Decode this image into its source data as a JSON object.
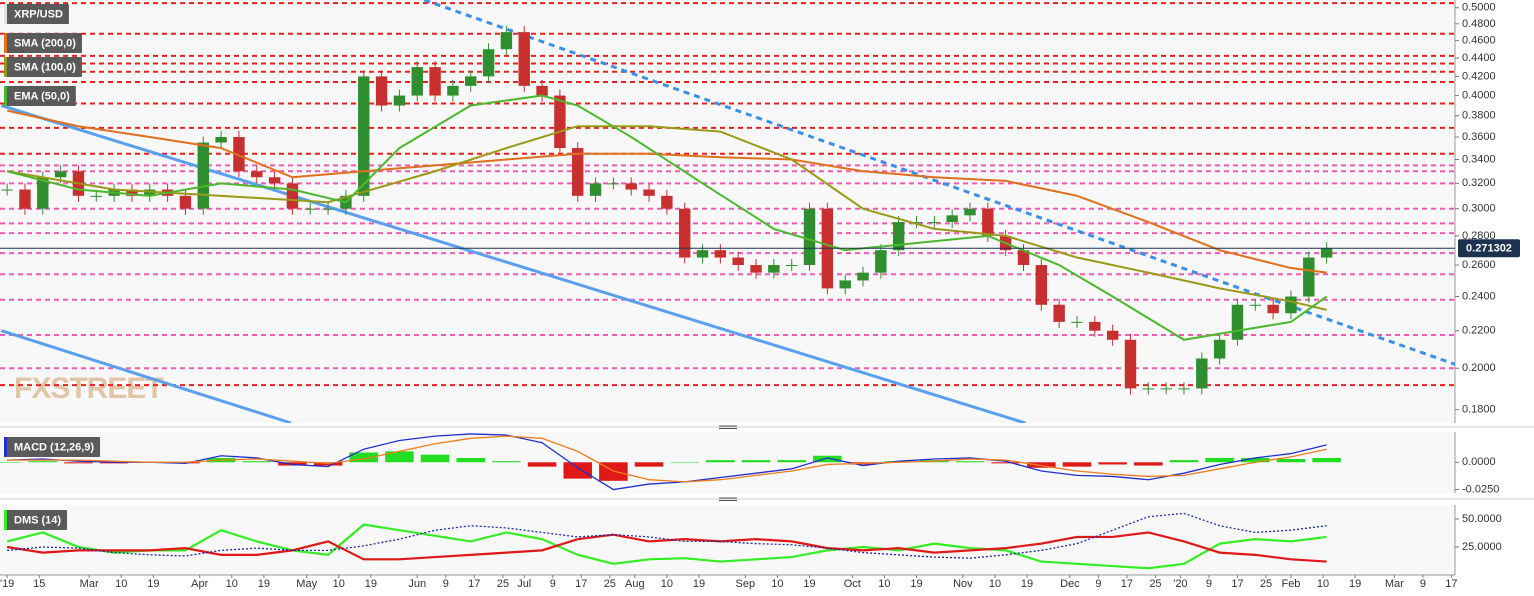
{
  "chart_data": [
    {
      "type": "candlestick",
      "title": "XRP/USD",
      "log": true,
      "ylim": [
        0.174,
        0.51
      ],
      "xlim": [
        34,
        442
      ],
      "yticks": [
        {
          "value": 0.18,
          "label": "0.1800"
        },
        {
          "value": 0.2,
          "label": "0.2000"
        },
        {
          "value": 0.22,
          "label": "0.2200"
        },
        {
          "value": 0.24,
          "label": "0.2400"
        },
        {
          "value": 0.26,
          "label": "0.2600"
        },
        {
          "value": 0.28,
          "label": "0.2800"
        },
        {
          "value": 0.3,
          "label": "0.3000"
        },
        {
          "value": 0.32,
          "label": "0.3200"
        },
        {
          "value": 0.34,
          "label": "0.3400"
        },
        {
          "value": 0.36,
          "label": "0.3600"
        },
        {
          "value": 0.38,
          "label": "0.3800"
        },
        {
          "value": 0.4,
          "label": "0.4000"
        },
        {
          "value": 0.42,
          "label": "0.4200"
        },
        {
          "value": 0.44,
          "label": "0.4400"
        },
        {
          "value": 0.46,
          "label": "0.4600"
        },
        {
          "value": 0.48,
          "label": "0.4800"
        },
        {
          "value": 0.5,
          "label": "0.5000"
        }
      ],
      "up_color": "#2f8f2f",
      "down_color": "#c83030",
      "x": [
        36,
        41,
        46,
        51,
        56,
        61,
        66,
        71,
        76,
        81,
        86,
        91,
        96,
        101,
        106,
        111,
        116,
        121,
        126,
        131,
        136,
        141,
        146,
        151,
        156,
        161,
        166,
        171,
        176,
        181,
        186,
        191,
        196,
        201,
        206,
        211,
        216,
        221,
        226,
        231,
        236,
        241,
        246,
        251,
        256,
        261,
        266,
        271,
        276,
        281,
        286,
        291,
        296,
        301,
        306,
        311,
        316,
        321,
        326,
        331,
        336,
        341,
        346,
        351,
        356,
        361,
        366,
        371,
        376,
        381,
        386,
        391,
        396,
        401,
        406
      ],
      "values": [
        0.315,
        0.3,
        0.325,
        0.33,
        0.31,
        0.31,
        0.315,
        0.31,
        0.315,
        0.31,
        0.3,
        0.355,
        0.36,
        0.33,
        0.325,
        0.32,
        0.3,
        0.3,
        0.3,
        0.31,
        0.42,
        0.39,
        0.4,
        0.43,
        0.4,
        0.41,
        0.42,
        0.45,
        0.47,
        0.41,
        0.4,
        0.35,
        0.31,
        0.32,
        0.32,
        0.315,
        0.31,
        0.3,
        0.265,
        0.27,
        0.265,
        0.26,
        0.255,
        0.26,
        0.26,
        0.3,
        0.245,
        0.25,
        0.255,
        0.27,
        0.29,
        0.29,
        0.29,
        0.295,
        0.3,
        0.28,
        0.27,
        0.26,
        0.235,
        0.225,
        0.225,
        0.22,
        0.215,
        0.19,
        0.19,
        0.19,
        0.19,
        0.205,
        0.215,
        0.235,
        0.235,
        0.23,
        0.24,
        0.265,
        0.2713
      ],
      "series": [
        {
          "name": "SMA (200,0)",
          "color": "#e0701c",
          "x": [
            36,
            56,
            76,
            96,
            116,
            136,
            156,
            176,
            196,
            216,
            236,
            256,
            276,
            296,
            316,
            336,
            356,
            376,
            396,
            406
          ],
          "values": [
            0.385,
            0.37,
            0.36,
            0.35,
            0.325,
            0.33,
            0.335,
            0.34,
            0.345,
            0.345,
            0.342,
            0.34,
            0.33,
            0.325,
            0.322,
            0.31,
            0.29,
            0.27,
            0.258,
            0.255
          ]
        },
        {
          "name": "SMA (100,0)",
          "color": "#9a9a18",
          "x": [
            36,
            66,
            96,
            126,
            156,
            176,
            196,
            216,
            236,
            256,
            276,
            296,
            316,
            336,
            356,
            376,
            396,
            406
          ],
          "values": [
            0.33,
            0.315,
            0.31,
            0.305,
            0.33,
            0.35,
            0.37,
            0.37,
            0.365,
            0.34,
            0.3,
            0.285,
            0.28,
            0.265,
            0.255,
            0.245,
            0.237,
            0.232
          ]
        },
        {
          "name": "EMA (50,0)",
          "color": "#4cb82c",
          "x": [
            36,
            56,
            76,
            96,
            116,
            131,
            146,
            166,
            186,
            196,
            211,
            231,
            251,
            271,
            291,
            311,
            331,
            346,
            366,
            381,
            396,
            406
          ],
          "values": [
            0.33,
            0.315,
            0.31,
            0.32,
            0.315,
            0.305,
            0.35,
            0.39,
            0.4,
            0.39,
            0.36,
            0.32,
            0.285,
            0.27,
            0.275,
            0.28,
            0.26,
            0.24,
            0.215,
            0.22,
            0.225,
            0.24
          ]
        }
      ],
      "levels": [
        {
          "color": "#e8201c",
          "values": [
            0.506,
            0.468,
            0.4425,
            0.434,
            0.425,
            0.414,
            0.392,
            0.3685,
            0.345,
            0.1916
          ]
        },
        {
          "color": "#f05ab4",
          "values": [
            0.335,
            0.33,
            0.32,
            0.3,
            0.289,
            0.282,
            0.268,
            0.254,
            0.238,
            0.2176,
            0.2
          ]
        }
      ],
      "trendlines": [
        {
          "color": "#3a8fe8",
          "dashed": true,
          "x": [
            153,
            442
          ],
          "values": [
            0.51,
            0.202
          ]
        },
        {
          "color": "#5aa0f0",
          "dashed": false,
          "x": [
            34.4,
            321.5
          ],
          "values": [
            0.39,
            0.174
          ]
        },
        {
          "color": "#5aa0f0",
          "dashed": false,
          "x": [
            34.4,
            115.6
          ],
          "values": [
            0.22,
            0.174
          ]
        }
      ],
      "last_price": 0.271302,
      "last_color": "#1c3350",
      "watermark": "FXSTREET"
    },
    {
      "type": "macd",
      "title": "MACD (12,26,9)",
      "xlim": [
        34,
        442
      ],
      "ylim": [
        -0.0282,
        0.0278
      ],
      "yticks": [
        {
          "value": 0,
          "label": "0.0000"
        },
        {
          "value": -0.025,
          "label": "-0.0250"
        }
      ],
      "x": [
        36,
        46,
        56,
        66,
        76,
        86,
        96,
        106,
        116,
        126,
        136,
        146,
        156,
        166,
        176,
        186,
        196,
        206,
        216,
        226,
        236,
        246,
        256,
        266,
        276,
        286,
        296,
        306,
        316,
        326,
        336,
        346,
        356,
        366,
        376,
        386,
        396,
        406
      ],
      "series": [
        {
          "color": "#2030d0",
          "values": [
            0.002,
            0.003,
            0.001,
            0,
            0,
            -0.001,
            0.006,
            0.004,
            -0.002,
            -0.004,
            0.012,
            0.02,
            0.024,
            0.026,
            0.025,
            0.018,
            -0.005,
            -0.025,
            -0.02,
            -0.018,
            -0.014,
            -0.01,
            -0.006,
            0.004,
            -0.003,
            0.001,
            0.003,
            0.004,
            0.001,
            -0.008,
            -0.012,
            -0.013,
            -0.016,
            -0.01,
            -0.002,
            0.004,
            0.008,
            0.016
          ]
        },
        {
          "color": "#f07c1c",
          "values": [
            0.002,
            0.002,
            0.002,
            0.001,
            0,
            0,
            0.002,
            0.003,
            0.001,
            -0.001,
            0.003,
            0.01,
            0.017,
            0.022,
            0.024,
            0.022,
            0.01,
            -0.008,
            -0.016,
            -0.018,
            -0.016,
            -0.012,
            -0.008,
            -0.002,
            -0.001,
            0,
            0.001,
            0.003,
            0.002,
            -0.003,
            -0.008,
            -0.011,
            -0.013,
            -0.012,
            -0.006,
            0,
            0.005,
            0.012
          ]
        }
      ],
      "histogram": {
        "up_color": "#22dd22",
        "down_color": "#e01818",
        "values": [
          0,
          0.001,
          -0.001,
          -0.001,
          0,
          -0.001,
          0.004,
          0.001,
          -0.003,
          -0.003,
          0.009,
          0.01,
          0.007,
          0.004,
          0.001,
          -0.004,
          -0.015,
          -0.017,
          -0.004,
          0,
          0.002,
          0.002,
          0.002,
          0.006,
          -0.002,
          0.001,
          0.002,
          0.001,
          -0.001,
          -0.005,
          -0.004,
          -0.002,
          -0.003,
          0.002,
          0.004,
          0.004,
          0.003,
          0.004
        ]
      }
    },
    {
      "type": "dms",
      "title": "DMS (14)",
      "xlim": [
        34,
        442
      ],
      "ylim": [
        0,
        62.5
      ],
      "yticks": [
        {
          "value": 50,
          "label": "50.0000"
        },
        {
          "value": 25,
          "label": "25.0000"
        }
      ],
      "x": [
        36,
        46,
        56,
        66,
        76,
        86,
        96,
        106,
        116,
        126,
        136,
        146,
        156,
        166,
        176,
        186,
        196,
        206,
        216,
        226,
        236,
        246,
        256,
        266,
        276,
        286,
        296,
        306,
        316,
        326,
        336,
        346,
        356,
        366,
        376,
        386,
        396,
        406
      ],
      "series": [
        {
          "color": "#33ee22",
          "values": [
            30,
            38,
            25,
            20,
            22,
            22,
            40,
            30,
            22,
            18,
            45,
            40,
            35,
            30,
            38,
            32,
            18,
            10,
            14,
            15,
            12,
            14,
            16,
            22,
            25,
            22,
            28,
            24,
            22,
            12,
            10,
            8,
            6,
            10,
            28,
            32,
            30,
            34
          ]
        },
        {
          "color": "#e01818",
          "values": [
            25,
            20,
            22,
            22,
            22,
            24,
            18,
            18,
            22,
            30,
            14,
            14,
            16,
            18,
            20,
            22,
            32,
            36,
            30,
            32,
            30,
            32,
            30,
            24,
            22,
            24,
            20,
            22,
            24,
            28,
            34,
            34,
            38,
            30,
            20,
            18,
            14,
            12
          ]
        },
        {
          "color": "#1a2aa8",
          "dotted": true,
          "values": [
            22,
            25,
            24,
            20,
            18,
            17,
            22,
            24,
            22,
            22,
            26,
            32,
            40,
            44,
            42,
            38,
            34,
            36,
            34,
            30,
            30,
            28,
            27,
            24,
            20,
            18,
            16,
            15,
            18,
            22,
            28,
            40,
            52,
            55,
            44,
            38,
            40,
            44
          ]
        }
      ],
      "xticks": [
        {
          "value": 36,
          "label": "'19"
        },
        {
          "value": 45,
          "label": "15"
        },
        {
          "value": 59,
          "label": "Mar"
        },
        {
          "value": 68,
          "label": "10"
        },
        {
          "value": 77,
          "label": "19"
        },
        {
          "value": 90,
          "label": "Apr"
        },
        {
          "value": 99,
          "label": "10"
        },
        {
          "value": 108,
          "label": "19"
        },
        {
          "value": 120,
          "label": "May"
        },
        {
          "value": 129,
          "label": "10"
        },
        {
          "value": 138,
          "label": "19"
        },
        {
          "value": 151,
          "label": "Jun"
        },
        {
          "value": 159,
          "label": "9"
        },
        {
          "value": 167,
          "label": "17"
        },
        {
          "value": 175,
          "label": "25"
        },
        {
          "value": 181,
          "label": "Jul"
        },
        {
          "value": 189,
          "label": "9"
        },
        {
          "value": 197,
          "label": "17"
        },
        {
          "value": 205,
          "label": "25"
        },
        {
          "value": 212,
          "label": "Aug"
        },
        {
          "value": 221,
          "label": "10"
        },
        {
          "value": 230,
          "label": "19"
        },
        {
          "value": 243,
          "label": "Sep"
        },
        {
          "value": 252,
          "label": "10"
        },
        {
          "value": 261,
          "label": "19"
        },
        {
          "value": 273,
          "label": "Oct"
        },
        {
          "value": 282,
          "label": "10"
        },
        {
          "value": 291,
          "label": "19"
        },
        {
          "value": 304,
          "label": "Nov"
        },
        {
          "value": 313,
          "label": "10"
        },
        {
          "value": 322,
          "label": "19"
        },
        {
          "value": 334,
          "label": "Dec"
        },
        {
          "value": 342,
          "label": "9"
        },
        {
          "value": 350,
          "label": "17"
        },
        {
          "value": 358,
          "label": "25"
        },
        {
          "value": 365,
          "label": "'20"
        },
        {
          "value": 373,
          "label": "9"
        },
        {
          "value": 381,
          "label": "17"
        },
        {
          "value": 389,
          "label": "25"
        },
        {
          "value": 396,
          "label": "Feb"
        },
        {
          "value": 405,
          "label": "10"
        },
        {
          "value": 414,
          "label": "19"
        },
        {
          "value": 425,
          "label": "Mar"
        },
        {
          "value": 433,
          "label": "9"
        },
        {
          "value": 441,
          "label": "17"
        }
      ]
    }
  ]
}
